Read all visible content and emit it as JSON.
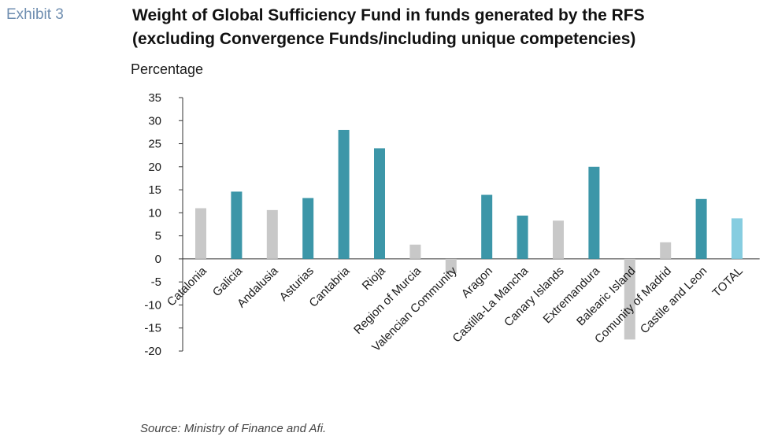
{
  "exhibit_label": "Exhibit 3",
  "title_line1": "Weight of Global Sufficiency Fund in funds generated by the RFS",
  "title_line2": "(excluding Convergence Funds/including  unique competencies)",
  "source": "Source: Ministry of Finance and Afi.",
  "colors": {
    "highlight": "#3c96a8",
    "other": "#c8c8c8",
    "total": "#86cde0"
  },
  "chart_data": {
    "type": "bar",
    "title": "Weight of Global Sufficiency Fund in funds generated by the RFS (excluding Convergence Funds/including  unique competencies)",
    "ylabel": "Percentage",
    "xlabel": "",
    "ylim": [
      -20,
      35
    ],
    "yticks": [
      35,
      30,
      25,
      20,
      15,
      10,
      5,
      0,
      -5,
      -10,
      -15,
      -20
    ],
    "grid": false,
    "legend": "none",
    "categories": [
      "Catalonia",
      "Galicia",
      "Andalusia",
      "Asturias",
      "Cantabria",
      "Rioja",
      "Region of Murcia",
      "Valencian Community",
      "Aragon",
      "Castilla-La Mancha",
      "Canary Islands",
      "Extremandura",
      "Balearic Island",
      "Comunity of Madrid",
      "Castile and Leon",
      "TOTAL"
    ],
    "values": [
      11,
      14.6,
      10.6,
      13.2,
      28,
      24,
      3.1,
      -3.1,
      13.9,
      9.4,
      8.3,
      20,
      -17.5,
      3.6,
      13,
      8.8
    ],
    "bar_color_group": [
      "other",
      "highlight",
      "other",
      "highlight",
      "highlight",
      "highlight",
      "other",
      "other",
      "highlight",
      "highlight",
      "other",
      "highlight",
      "other",
      "other",
      "highlight",
      "total"
    ]
  }
}
